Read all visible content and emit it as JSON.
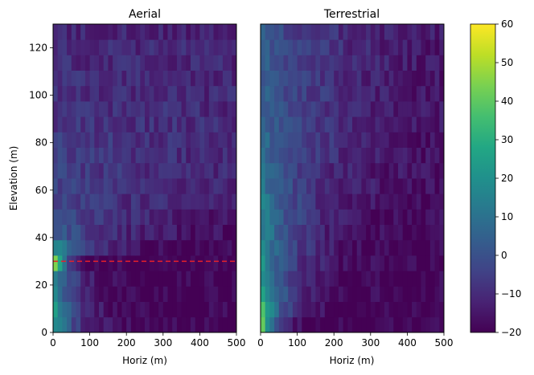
{
  "colormap": "viridis",
  "chart_data": [
    {
      "type": "heatmap",
      "title": "Aerial",
      "xlabel": "Horiz (m)",
      "ylabel": "Elevation (m)",
      "xlim": [
        0,
        500
      ],
      "ylim": [
        0,
        130
      ],
      "x_ticks": [
        0,
        100,
        200,
        300,
        400,
        500
      ],
      "y_ticks": [
        0,
        20,
        40,
        60,
        80,
        100,
        120
      ],
      "cell_width": 12.5,
      "cell_height": 6.5,
      "reference_line": {
        "y": 30,
        "color": "#e8202a",
        "style": "dashed"
      },
      "profile": [
        {
          "y": 0,
          "x_near": 25,
          "x_far": -20,
          "decay": 60
        },
        {
          "y": 6.5,
          "x_near": 25,
          "x_far": -20,
          "decay": 60
        },
        {
          "y": 13,
          "x_near": 22,
          "x_far": -20,
          "decay": 60
        },
        {
          "y": 19.5,
          "x_near": 18,
          "x_far": -20,
          "decay": 60
        },
        {
          "y": 26,
          "x_near": 60,
          "x_far": -20,
          "decay": 30
        },
        {
          "y": 32.5,
          "x_near": 18,
          "x_far": -20,
          "decay": 110
        },
        {
          "y": 39,
          "x_near": 5,
          "x_far": -18,
          "decay": 160
        },
        {
          "y": 45.5,
          "x_near": 0,
          "x_far": -17,
          "decay": 220
        },
        {
          "y": 52,
          "x_near": -2,
          "x_far": -16,
          "decay": 280
        },
        {
          "y": 58.5,
          "x_near": -3,
          "x_far": -15,
          "decay": 320
        },
        {
          "y": 65,
          "x_near": -4,
          "x_far": -14,
          "decay": 360
        },
        {
          "y": 71.5,
          "x_near": -5,
          "x_far": -13,
          "decay": 400
        },
        {
          "y": 78,
          "x_near": -6,
          "x_far": -12,
          "decay": 440
        },
        {
          "y": 84.5,
          "x_near": -7,
          "x_far": -12,
          "decay": 460
        },
        {
          "y": 91,
          "x_near": -8,
          "x_far": -12,
          "decay": 480
        },
        {
          "y": 97.5,
          "x_near": -9,
          "x_far": -12,
          "decay": 500
        },
        {
          "y": 104,
          "x_near": -9,
          "x_far": -12,
          "decay": 500
        },
        {
          "y": 110.5,
          "x_near": -10,
          "x_far": -12,
          "decay": 500
        },
        {
          "y": 117,
          "x_near": -10,
          "x_far": -12,
          "decay": 500
        },
        {
          "y": 123.5,
          "x_near": -11,
          "x_far": -13,
          "decay": 500
        }
      ]
    },
    {
      "type": "heatmap",
      "title": "Terrestrial",
      "xlabel": "Horiz (m)",
      "ylabel": "",
      "xlim": [
        0,
        500
      ],
      "ylim": [
        0,
        130
      ],
      "x_ticks": [
        0,
        100,
        200,
        300,
        400,
        500
      ],
      "y_ticks": [
        0,
        20,
        40,
        60,
        80,
        100,
        120
      ],
      "cell_width": 12.5,
      "cell_height": 6.5,
      "profile": [
        {
          "y": 0,
          "x_near": 60,
          "x_far": -20,
          "decay": 30
        },
        {
          "y": 6.5,
          "x_near": 40,
          "x_far": -20,
          "decay": 55
        },
        {
          "y": 13,
          "x_near": 30,
          "x_far": -20,
          "decay": 70
        },
        {
          "y": 19.5,
          "x_near": 25,
          "x_far": -20,
          "decay": 80
        },
        {
          "y": 26,
          "x_near": 22,
          "x_far": -20,
          "decay": 90
        },
        {
          "y": 32.5,
          "x_near": 20,
          "x_far": -20,
          "decay": 100
        },
        {
          "y": 39,
          "x_near": 18,
          "x_far": -20,
          "decay": 110
        },
        {
          "y": 45.5,
          "x_near": 16,
          "x_far": -19,
          "decay": 120
        },
        {
          "y": 52,
          "x_near": 14,
          "x_far": -19,
          "decay": 130
        },
        {
          "y": 58.5,
          "x_near": 12,
          "x_far": -18,
          "decay": 140
        },
        {
          "y": 65,
          "x_near": 10,
          "x_far": -18,
          "decay": 150
        },
        {
          "y": 71.5,
          "x_near": 9,
          "x_far": -18,
          "decay": 160
        },
        {
          "y": 78,
          "x_near": 8,
          "x_far": -17,
          "decay": 170
        },
        {
          "y": 84.5,
          "x_near": 7,
          "x_far": -17,
          "decay": 180
        },
        {
          "y": 91,
          "x_near": 6,
          "x_far": -17,
          "decay": 190
        },
        {
          "y": 97.5,
          "x_near": 5,
          "x_far": -17,
          "decay": 200
        },
        {
          "y": 104,
          "x_near": 5,
          "x_far": -17,
          "decay": 210
        },
        {
          "y": 110.5,
          "x_near": 4,
          "x_far": -17,
          "decay": 220
        },
        {
          "y": 117,
          "x_near": 3,
          "x_far": -17,
          "decay": 230
        },
        {
          "y": 123.5,
          "x_near": 2,
          "x_far": -17,
          "decay": 240
        }
      ]
    }
  ],
  "colorbar": {
    "min": -20,
    "max": 60,
    "ticks": [
      -20,
      -10,
      0,
      10,
      20,
      30,
      40,
      50,
      60
    ],
    "tick_labels": [
      "−20",
      "−10",
      "0",
      "10",
      "20",
      "30",
      "40",
      "50",
      "60"
    ]
  }
}
